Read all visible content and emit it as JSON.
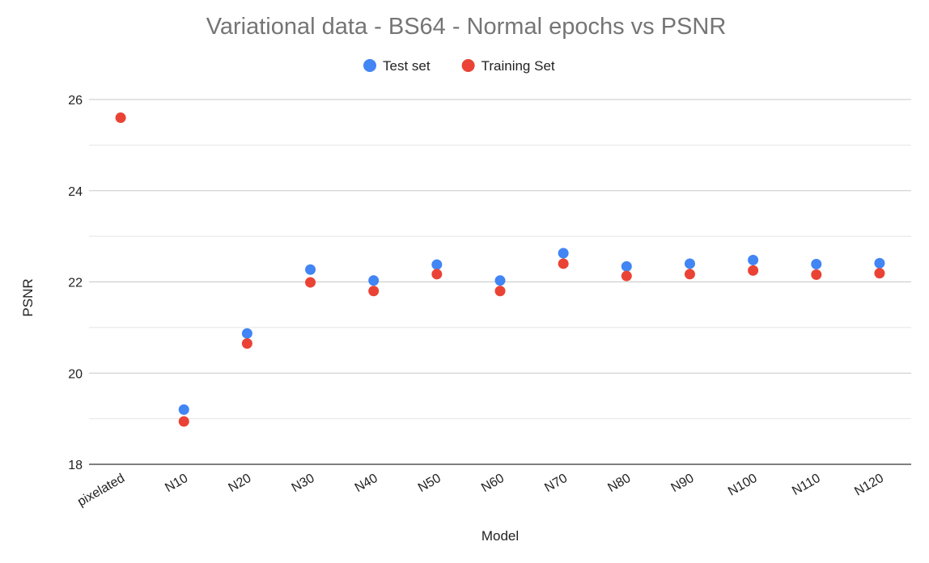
{
  "chart_data": {
    "type": "scatter",
    "title": "Variational data - BS64 - Normal epochs vs PSNR",
    "xlabel": "Model",
    "ylabel": "PSNR",
    "categories": [
      "pixelated",
      "N10",
      "N20",
      "N30",
      "N40",
      "N50",
      "N60",
      "N70",
      "N80",
      "N90",
      "N100",
      "N110",
      "N120"
    ],
    "ylim": [
      18,
      26
    ],
    "yticks": [
      18,
      20,
      22,
      24,
      26
    ],
    "grid": true,
    "legend_position": "top",
    "series": [
      {
        "name": "Test set",
        "color": "#4285f4",
        "values": [
          null,
          19.2,
          20.87,
          22.27,
          22.03,
          22.38,
          22.03,
          22.63,
          22.34,
          22.4,
          22.48,
          22.39,
          22.41
        ]
      },
      {
        "name": "Training Set",
        "color": "#ea4335",
        "values": [
          25.6,
          18.94,
          20.65,
          21.99,
          21.8,
          22.17,
          21.8,
          22.4,
          22.13,
          22.17,
          22.25,
          22.16,
          22.19
        ]
      }
    ]
  }
}
